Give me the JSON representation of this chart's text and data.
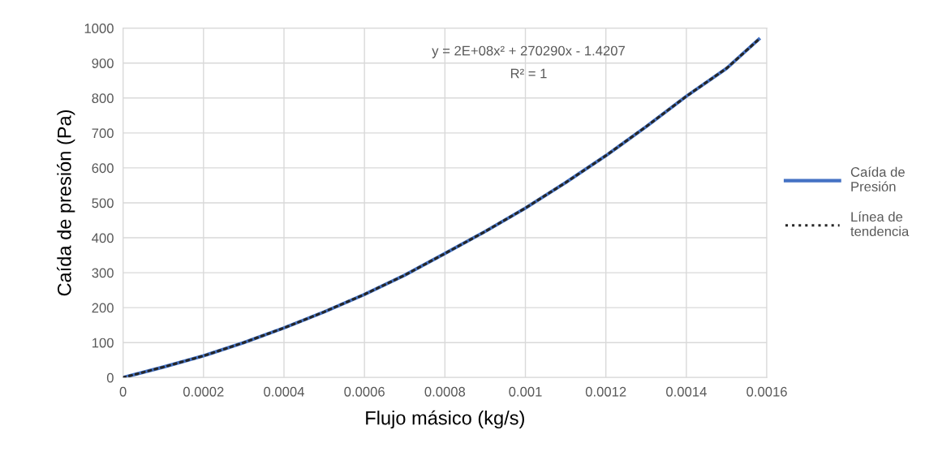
{
  "chart_data": {
    "type": "line",
    "xlabel": "Flujo másico (kg/s)",
    "ylabel": "Caída de presión (Pa)",
    "x": [
      0,
      0.0001,
      0.0002,
      0.0003,
      0.0004,
      0.0005,
      0.0006,
      0.0007,
      0.0008,
      0.0009,
      0.001,
      0.0011,
      0.0012,
      0.0013,
      0.0014,
      0.0015,
      0.00158
    ],
    "series": [
      {
        "name": "Caída de Presión",
        "color": "#4472c4",
        "line_style": "solid",
        "values": [
          0,
          30,
          62,
          100,
          142,
          188,
          238,
          293,
          355,
          418,
          485,
          558,
          635,
          718,
          805,
          885,
          968
        ]
      },
      {
        "name": "Línea de tendencia",
        "color": "#262626",
        "line_style": "dotted",
        "values": [
          0,
          30,
          62,
          100,
          142,
          188,
          238,
          293,
          355,
          418,
          485,
          558,
          635,
          718,
          805,
          885,
          968
        ]
      }
    ],
    "annotations": [
      "y = 2E+08x² + 270290x - 1.4207",
      "R² = 1"
    ],
    "xlim": [
      0,
      0.0016
    ],
    "xticks": [
      0,
      0.0002,
      0.0004,
      0.0006,
      0.0008,
      0.001,
      0.0012,
      0.0014,
      0.0016
    ],
    "ylim": [
      0,
      1000
    ],
    "yticks": [
      0,
      100,
      200,
      300,
      400,
      500,
      600,
      700,
      800,
      900,
      1000
    ],
    "grid": true,
    "legend": "right"
  }
}
